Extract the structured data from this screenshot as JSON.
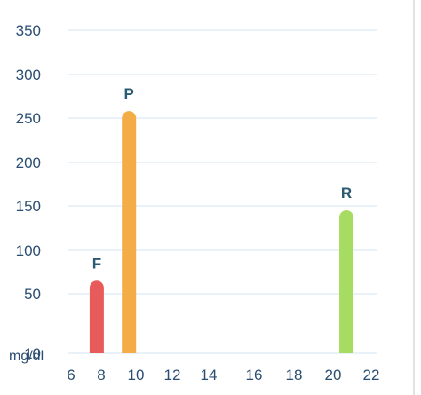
{
  "chart_data": {
    "type": "bar",
    "title": "",
    "xlabel": "",
    "ylabel": "",
    "y_unit": "mg/dl",
    "y_ticks": [
      10,
      50,
      100,
      150,
      200,
      250,
      300,
      350
    ],
    "x_ticks": [
      6,
      8,
      10,
      12,
      14,
      16,
      18,
      20,
      22
    ],
    "xlim": [
      6,
      22
    ],
    "ylim": [
      10,
      350
    ],
    "grid": true,
    "bars": [
      {
        "label": "F",
        "x": 7.7,
        "value": 65,
        "color": "#e85b5b"
      },
      {
        "label": "P",
        "x": 9.6,
        "value": 258,
        "color": "#f4ad46"
      },
      {
        "label": "R",
        "x": 20.7,
        "value": 145,
        "color": "#a6dc62"
      }
    ]
  }
}
